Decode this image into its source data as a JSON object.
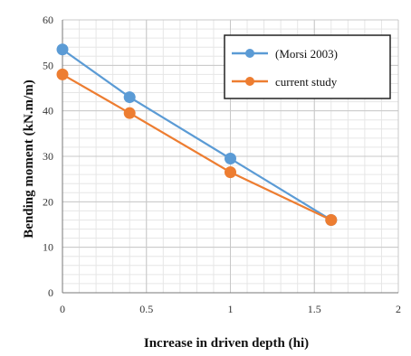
{
  "chart_data": {
    "type": "line",
    "title": "",
    "xlabel": "Increase in driven depth (hi)",
    "ylabel": "Bending moment  (kN.m/m)",
    "xlim": [
      0,
      2
    ],
    "ylim": [
      0,
      60
    ],
    "x_ticks": [
      "0",
      "0.5",
      "1",
      "1.5",
      "2"
    ],
    "y_ticks": [
      "0",
      "10",
      "20",
      "30",
      "40",
      "50",
      "60"
    ],
    "grid": true,
    "legend_position": "top-right",
    "series": [
      {
        "name": "(Morsi 2003)",
        "color": "#5B9BD5",
        "x": [
          0,
          0.4,
          1,
          1.6
        ],
        "y": [
          53.5,
          43,
          29.5,
          16
        ]
      },
      {
        "name": "current study",
        "color": "#ED7D31",
        "x": [
          0,
          0.4,
          1,
          1.6
        ],
        "y": [
          48,
          39.5,
          26.5,
          16
        ]
      }
    ]
  }
}
